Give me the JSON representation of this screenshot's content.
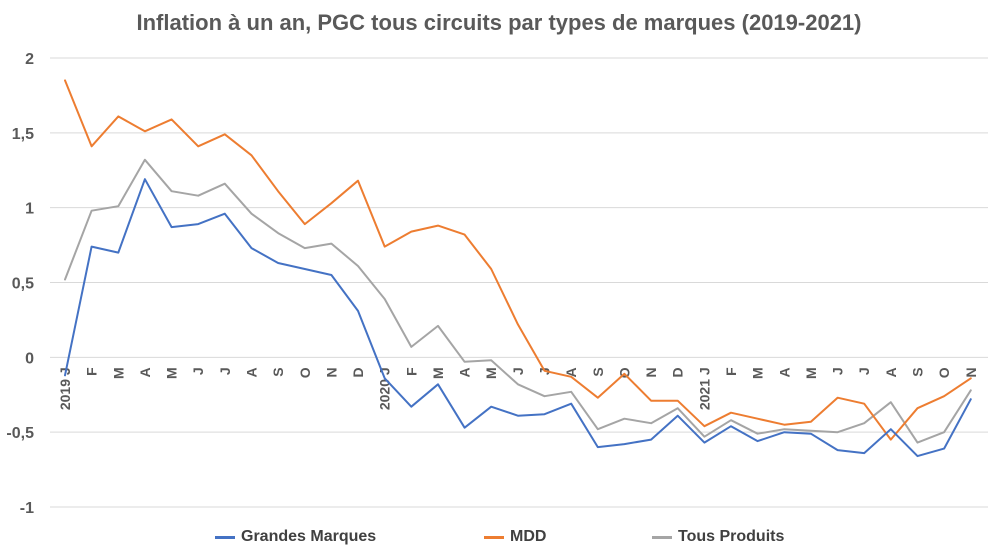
{
  "chart_data": {
    "type": "line",
    "title": "Inflation à un an, PGC tous circuits par types de marques (2019-2021)",
    "xlabel": "",
    "ylabel": "",
    "ylim": [
      -1,
      2
    ],
    "y_ticks": [
      2,
      1.5,
      1,
      0.5,
      0,
      -0.5,
      -1
    ],
    "y_tick_labels": [
      "2",
      "1,5",
      "1",
      "0,5",
      "0",
      "-0,5",
      "-1"
    ],
    "grid": true,
    "legend_position": "bottom",
    "categories": [
      "2019 J",
      "F",
      "M",
      "A",
      "M",
      "J",
      "J",
      "A",
      "S",
      "O",
      "N",
      "D",
      "2020 J",
      "F",
      "M",
      "A",
      "M",
      "J",
      "J",
      "A",
      "S",
      "O",
      "N",
      "D",
      "2021 J",
      "F",
      "M",
      "A",
      "M",
      "J",
      "J",
      "A",
      "S",
      "O",
      "N"
    ],
    "series": [
      {
        "name": "Grandes Marques",
        "color": "#4472C4",
        "values": [
          -0.12,
          0.74,
          0.7,
          1.19,
          0.87,
          0.89,
          0.96,
          0.73,
          0.63,
          0.59,
          0.55,
          0.31,
          -0.14,
          -0.33,
          -0.18,
          -0.47,
          -0.33,
          -0.39,
          -0.38,
          -0.31,
          -0.6,
          -0.58,
          -0.55,
          -0.39,
          -0.57,
          -0.46,
          -0.56,
          -0.5,
          -0.51,
          -0.62,
          -0.64,
          -0.48,
          -0.66,
          -0.61,
          -0.28
        ]
      },
      {
        "name": "MDD",
        "color": "#ED7D31",
        "values": [
          1.85,
          1.41,
          1.61,
          1.51,
          1.59,
          1.41,
          1.49,
          1.35,
          1.11,
          0.89,
          1.03,
          1.18,
          0.74,
          0.84,
          0.88,
          0.82,
          0.59,
          0.22,
          -0.09,
          -0.13,
          -0.27,
          -0.11,
          -0.29,
          -0.29,
          -0.46,
          -0.37,
          -0.41,
          -0.45,
          -0.43,
          -0.27,
          -0.31,
          -0.55,
          -0.34,
          -0.26,
          -0.14
        ]
      },
      {
        "name": "Tous Produits",
        "color": "#A5A5A5",
        "values": [
          0.52,
          0.98,
          1.01,
          1.32,
          1.11,
          1.08,
          1.16,
          0.96,
          0.83,
          0.73,
          0.76,
          0.61,
          0.39,
          0.07,
          0.21,
          -0.03,
          -0.02,
          -0.18,
          -0.26,
          -0.23,
          -0.48,
          -0.41,
          -0.44,
          -0.34,
          -0.53,
          -0.42,
          -0.51,
          -0.48,
          -0.49,
          -0.5,
          -0.44,
          -0.3,
          -0.57,
          -0.5,
          -0.22
        ]
      }
    ]
  }
}
